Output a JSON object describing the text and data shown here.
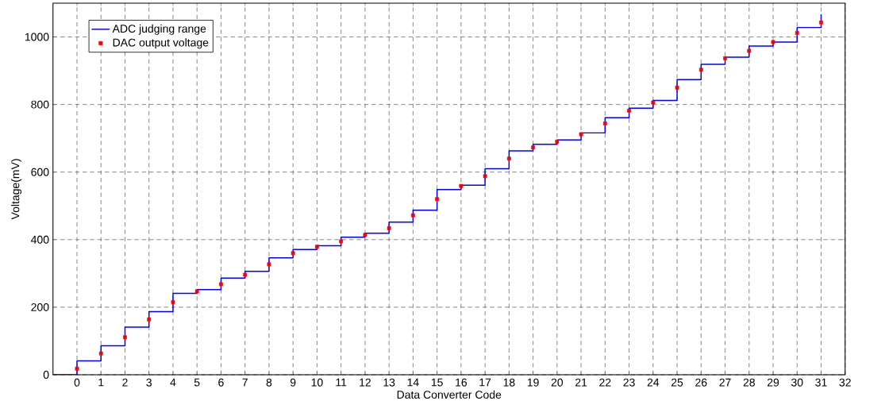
{
  "chart_data": {
    "type": "step",
    "xlabel": "Data Converter Code",
    "ylabel": "Voltage(mV)",
    "xlim": [
      -1,
      32
    ],
    "ylim": [
      0,
      1100
    ],
    "xticks": [
      0,
      1,
      2,
      3,
      4,
      5,
      6,
      7,
      8,
      9,
      10,
      11,
      12,
      13,
      14,
      15,
      16,
      17,
      18,
      19,
      20,
      21,
      22,
      23,
      24,
      25,
      26,
      27,
      28,
      29,
      30,
      31,
      32
    ],
    "yticks": [
      0,
      200,
      400,
      600,
      800,
      1000
    ],
    "grid": true,
    "legend": "top left",
    "series": [
      {
        "name": "ADC judging range",
        "color": "#0000ff",
        "marker": "none",
        "x": [
          -1,
          0,
          1,
          2,
          3,
          4,
          5,
          6,
          7,
          8,
          9,
          10,
          11,
          12,
          13,
          14,
          15,
          16,
          17,
          18,
          19,
          20,
          21,
          22,
          23,
          24,
          25,
          26,
          27,
          28,
          29,
          30,
          31
        ],
        "values": [
          0,
          41,
          86,
          141,
          187,
          241,
          252,
          286,
          306,
          346,
          371,
          382,
          407,
          419,
          452,
          487,
          548,
          561,
          610,
          663,
          682,
          695,
          716,
          761,
          789,
          812,
          874,
          919,
          940,
          973,
          985,
          1028,
          1067
        ]
      },
      {
        "name": "DAC output voltage",
        "type": "scatter",
        "color": "#ff0000",
        "marker": "square",
        "x": [
          0,
          1,
          2,
          3,
          4,
          5,
          6,
          7,
          8,
          9,
          10,
          11,
          12,
          13,
          14,
          15,
          16,
          17,
          18,
          19,
          20,
          21,
          22,
          23,
          24,
          25,
          26,
          27,
          28,
          29,
          30,
          31
        ],
        "values": [
          18,
          63,
          111,
          164,
          215,
          247,
          268,
          296,
          327,
          360,
          379,
          395,
          414,
          434,
          472,
          520,
          559,
          588,
          640,
          673,
          690,
          712,
          744,
          782,
          806,
          850,
          903,
          937,
          959,
          985,
          1012,
          1043
        ]
      }
    ]
  }
}
